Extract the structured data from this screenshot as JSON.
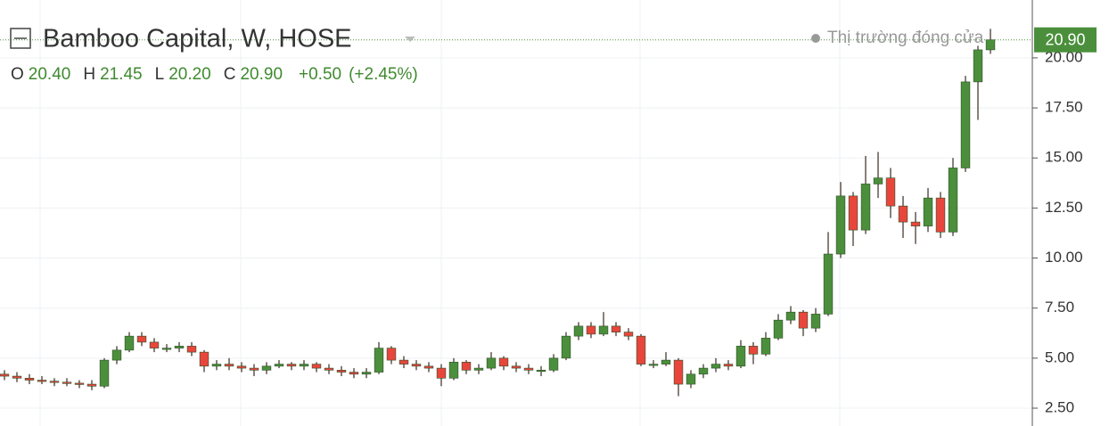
{
  "chart_data": {
    "type": "candlestick",
    "title": "Bamboo Capital, W, HOSE",
    "ohlc_legend": [
      {
        "key": "O",
        "value": "20.40"
      },
      {
        "key": "H",
        "value": "21.45"
      },
      {
        "key": "L",
        "value": "20.20"
      },
      {
        "key": "C",
        "value": "20.90"
      }
    ],
    "change": "+0.50",
    "change_pct": "(+2.45%)",
    "status": "Thị trường đóng cửa",
    "last_price": "20.90",
    "up_color": "#4b8f3c",
    "down_color": "#e8463c",
    "grid": true,
    "ylim": [
      1.61,
      22.89
    ],
    "yticks": [
      {
        "value": 2.5,
        "label": "2.50"
      },
      {
        "value": 5,
        "label": "5.00"
      },
      {
        "value": 7.5,
        "label": "7.50"
      },
      {
        "value": 10,
        "label": "10.00"
      },
      {
        "value": 12.5,
        "label": "12.50"
      },
      {
        "value": 15,
        "label": "15.00"
      },
      {
        "value": 17.5,
        "label": "17.50"
      },
      {
        "value": 20,
        "label": "20.00"
      }
    ],
    "open": [
      4.2,
      4.1,
      4.0,
      3.9,
      3.85,
      3.8,
      3.75,
      3.7,
      3.6,
      4.9,
      5.4,
      6.1,
      5.8,
      5.5,
      5.5,
      5.6,
      5.3,
      4.6,
      4.7,
      4.6,
      4.5,
      4.4,
      4.6,
      4.7,
      4.6,
      4.7,
      4.5,
      4.4,
      4.3,
      4.2,
      4.3,
      5.5,
      4.9,
      4.7,
      4.6,
      4.5,
      4.0,
      4.8,
      4.4,
      4.5,
      5.0,
      4.6,
      4.5,
      4.4,
      4.4,
      5.0,
      6.1,
      6.6,
      6.2,
      6.6,
      6.3,
      6.1,
      4.7,
      4.7,
      4.9,
      3.7,
      4.2,
      4.5,
      4.7,
      4.6,
      5.6,
      5.2,
      6.0,
      6.9,
      7.3,
      6.5,
      7.2,
      10.2,
      13.1,
      11.4,
      13.7,
      14.0,
      12.6,
      11.8,
      11.6,
      13.0,
      11.3,
      14.5,
      18.8,
      20.4
    ],
    "high": [
      4.4,
      4.3,
      4.2,
      4.1,
      4.0,
      4.0,
      3.9,
      3.9,
      5.0,
      5.6,
      6.3,
      6.3,
      6.0,
      5.7,
      5.8,
      5.8,
      5.4,
      4.9,
      5.0,
      4.8,
      4.7,
      4.8,
      4.9,
      4.8,
      4.9,
      4.8,
      4.7,
      4.6,
      4.5,
      4.5,
      5.8,
      5.6,
      5.1,
      4.9,
      4.8,
      4.7,
      5.0,
      4.9,
      4.7,
      5.3,
      5.1,
      4.8,
      4.7,
      4.6,
      5.2,
      6.3,
      6.8,
      6.8,
      7.3,
      6.8,
      6.5,
      6.2,
      4.9,
      5.3,
      5.0,
      4.4,
      4.7,
      5.0,
      4.9,
      5.9,
      5.8,
      6.3,
      7.2,
      7.6,
      7.4,
      7.5,
      11.3,
      13.8,
      13.3,
      15.1,
      15.3,
      14.5,
      13.1,
      12.3,
      13.5,
      13.3,
      15.0,
      19.1,
      20.6,
      21.45
    ],
    "low": [
      3.9,
      3.8,
      3.7,
      3.7,
      3.6,
      3.6,
      3.5,
      3.4,
      3.5,
      4.7,
      5.3,
      5.6,
      5.3,
      5.3,
      5.3,
      5.1,
      4.3,
      4.4,
      4.4,
      4.3,
      4.1,
      4.2,
      4.5,
      4.4,
      4.4,
      4.3,
      4.2,
      4.1,
      4.0,
      4.0,
      4.2,
      4.7,
      4.5,
      4.4,
      4.3,
      3.6,
      3.9,
      4.2,
      4.2,
      4.4,
      4.4,
      4.3,
      4.2,
      4.1,
      4.3,
      4.9,
      5.9,
      6.0,
      6.1,
      6.1,
      5.9,
      4.6,
      4.5,
      4.6,
      3.1,
      3.5,
      4.0,
      4.3,
      4.4,
      4.5,
      4.7,
      5.1,
      5.9,
      6.7,
      6.1,
      6.3,
      7.1,
      10.0,
      10.6,
      11.2,
      13.0,
      12.0,
      11.0,
      10.7,
      11.3,
      11.0,
      11.1,
      14.3,
      16.9,
      20.2
    ],
    "close": [
      4.1,
      4.0,
      3.9,
      3.85,
      3.8,
      3.75,
      3.7,
      3.6,
      4.9,
      5.4,
      6.1,
      5.8,
      5.5,
      5.5,
      5.6,
      5.3,
      4.6,
      4.7,
      4.6,
      4.5,
      4.4,
      4.6,
      4.7,
      4.6,
      4.7,
      4.5,
      4.4,
      4.3,
      4.2,
      4.3,
      5.5,
      4.9,
      4.7,
      4.6,
      4.5,
      4.0,
      4.8,
      4.4,
      4.5,
      5.0,
      4.6,
      4.5,
      4.4,
      4.4,
      5.0,
      6.1,
      6.6,
      6.2,
      6.6,
      6.3,
      6.1,
      4.7,
      4.7,
      4.9,
      3.7,
      4.2,
      4.5,
      4.7,
      4.6,
      5.6,
      5.2,
      6.0,
      6.9,
      7.3,
      6.5,
      7.2,
      10.2,
      13.1,
      11.4,
      13.7,
      14.0,
      12.6,
      11.8,
      11.6,
      13.0,
      11.3,
      14.5,
      18.8,
      20.4,
      20.9
    ]
  }
}
